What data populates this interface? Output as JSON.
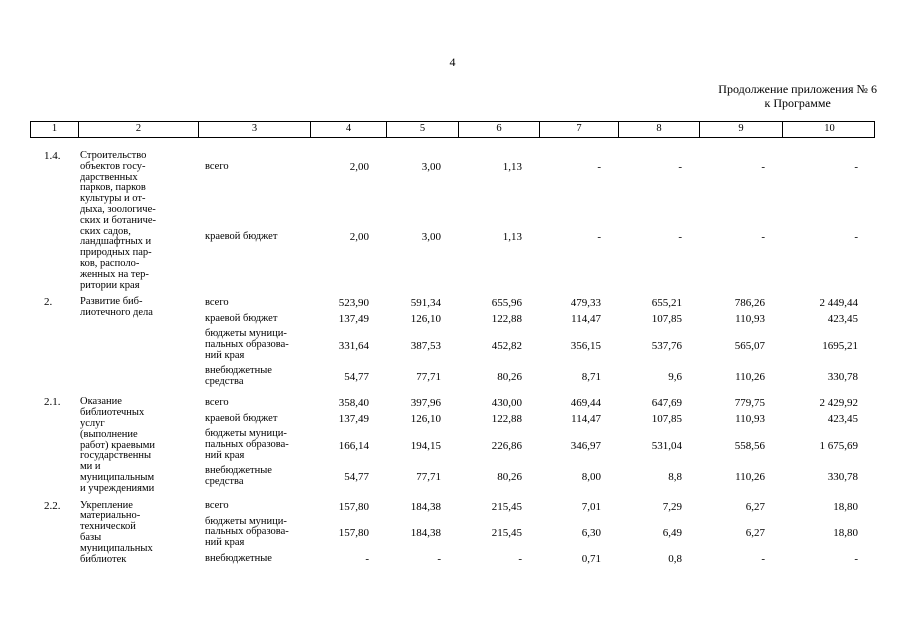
{
  "page": {
    "number": "4",
    "continuation": [
      "Продолжение приложения № 6",
      "к Программе"
    ]
  },
  "table": {
    "column_headers": [
      "1",
      "2",
      "3",
      "4",
      "5",
      "6",
      "7",
      "8",
      "9",
      "10"
    ],
    "rows": [
      {
        "num": "1.4.",
        "name": "Строительство\nобъектов госу-\nдарственных\nпарков, парков\nкультуры и от-\nдыха, зоологиче-\nских и ботаниче-\nских садов,\nландшафтных и\nприродных пар-\nков, располо-\nженных на тер-\nритории края",
        "subrows": [
          {
            "source": "всего",
            "values": [
              "2,00",
              "3,00",
              "1,13",
              "-",
              "-",
              "-",
              "-"
            ]
          },
          {
            "source": "краевой бюджет",
            "values": [
              "2,00",
              "3,00",
              "1,13",
              "-",
              "-",
              "-",
              "-"
            ]
          }
        ]
      },
      {
        "num": "2.",
        "name": "Развитие биб-\nлиотечного дела",
        "subrows": [
          {
            "source": "всего",
            "values": [
              "523,90",
              "591,34",
              "655,96",
              "479,33",
              "655,21",
              "786,26",
              "2 449,44"
            ]
          },
          {
            "source": "краевой бюджет",
            "values": [
              "137,49",
              "126,10",
              "122,88",
              "114,47",
              "107,85",
              "110,93",
              "423,45"
            ]
          },
          {
            "source": "бюджеты муници-\nпальных образова-\nний края",
            "values": [
              "331,64",
              "387,53",
              "452,82",
              "356,15",
              "537,76",
              "565,07",
              "1695,21"
            ]
          },
          {
            "source": "внебюджетные\nсредства",
            "values": [
              "54,77",
              "77,71",
              "80,26",
              "8,71",
              "9,6",
              "110,26",
              "330,78"
            ]
          }
        ]
      },
      {
        "num": "2.1.",
        "name": "Оказание\nбиблиотечных\nуслуг\n(выполнение\nработ) краевыми\nгосударственны\nми и\nмуниципальным\nи учреждениями",
        "subrows": [
          {
            "source": "всего",
            "values": [
              "358,40",
              "397,96",
              "430,00",
              "469,44",
              "647,69",
              "779,75",
              "2 429,92"
            ]
          },
          {
            "source": "краевой бюджет",
            "values": [
              "137,49",
              "126,10",
              "122,88",
              "114,47",
              "107,85",
              "110,93",
              "423,45"
            ]
          },
          {
            "source": "бюджеты муници-\nпальных образова-\nний края",
            "values": [
              "166,14",
              "194,15",
              "226,86",
              "346,97",
              "531,04",
              "558,56",
              "1 675,69"
            ]
          },
          {
            "source": "внебюджетные\nсредства",
            "values": [
              "54,77",
              "77,71",
              "80,26",
              "8,00",
              "8,8",
              "110,26",
              "330,78"
            ]
          }
        ]
      },
      {
        "num": "2.2.",
        "name": "Укрепление\nматериально-\nтехнической\nбазы\nмуниципальных\nбиблиотек",
        "subrows": [
          {
            "source": "всего",
            "values": [
              "157,80",
              "184,38",
              "215,45",
              "7,01",
              "7,29",
              "6,27",
              "18,80"
            ]
          },
          {
            "source": "бюджеты муници-\nпальных образова-\nний края",
            "values": [
              "157,80",
              "184,38",
              "215,45",
              "6,30",
              "6,49",
              "6,27",
              "18,80"
            ]
          },
          {
            "source": "внебюджетные",
            "values": [
              "-",
              "-",
              "-",
              "0,71",
              "0,8",
              "-",
              "-"
            ]
          }
        ]
      }
    ]
  }
}
